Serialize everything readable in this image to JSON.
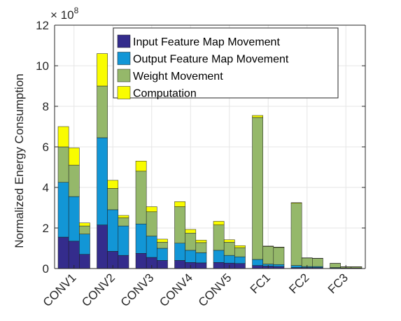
{
  "chart_data": {
    "type": "bar",
    "stacked": true,
    "grouped": true,
    "categories": [
      "CONV1",
      "CONV2",
      "CONV3",
      "CONV4",
      "CONV5",
      "FC1",
      "FC2",
      "FC3"
    ],
    "bars_per_category": 3,
    "ylabel": "Normalized Energy Consumption",
    "y_exponent_label": "× 10",
    "y_exponent_power": "8",
    "ylim": [
      0,
      12
    ],
    "yticks": [
      0,
      2,
      4,
      6,
      8,
      10,
      12
    ],
    "grid": true,
    "legend_position": "top-right",
    "series": [
      {
        "name": "Input Feature Map Movement",
        "color": "#342C8C",
        "values": [
          [
            1.55,
            1.35,
            0.7
          ],
          [
            2.15,
            0.85,
            0.65
          ],
          [
            0.75,
            0.55,
            0.4
          ],
          [
            0.4,
            0.3,
            0.28
          ],
          [
            0.3,
            0.27,
            0.25
          ],
          [
            0.15,
            0.12,
            0.1
          ],
          [
            0.05,
            0.05,
            0.05
          ],
          [
            0.02,
            0.02,
            0.02
          ]
        ]
      },
      {
        "name": "Output Feature Map Movement",
        "color": "#1296D6",
        "values": [
          [
            2.7,
            2.2,
            1.0
          ],
          [
            4.3,
            2.05,
            1.45
          ],
          [
            1.45,
            1.05,
            0.6
          ],
          [
            0.85,
            0.6,
            0.5
          ],
          [
            0.6,
            0.38,
            0.33
          ],
          [
            0.3,
            0.1,
            0.1
          ],
          [
            0.1,
            0.05,
            0.05
          ],
          [
            0.03,
            0.01,
            0.01
          ]
        ]
      },
      {
        "name": "Weight Movement",
        "color": "#95B86A",
        "values": [
          [
            1.75,
            1.55,
            0.4
          ],
          [
            2.55,
            1.05,
            0.4
          ],
          [
            2.6,
            1.2,
            0.3
          ],
          [
            1.8,
            0.85,
            0.5
          ],
          [
            1.25,
            0.65,
            0.45
          ],
          [
            7.0,
            0.87,
            0.84
          ],
          [
            3.07,
            0.42,
            0.4
          ],
          [
            0.2,
            0.05,
            0.05
          ]
        ]
      },
      {
        "name": "Computation",
        "color": "#F9FC00",
        "values": [
          [
            1.0,
            0.85,
            0.15
          ],
          [
            1.6,
            0.4,
            0.12
          ],
          [
            0.5,
            0.25,
            0.15
          ],
          [
            0.25,
            0.18,
            0.12
          ],
          [
            0.18,
            0.12,
            0.1
          ],
          [
            0.1,
            0.02,
            0.02
          ],
          [
            0.03,
            0.01,
            0.01
          ],
          [
            0.01,
            0.01,
            0.01
          ]
        ]
      }
    ]
  }
}
